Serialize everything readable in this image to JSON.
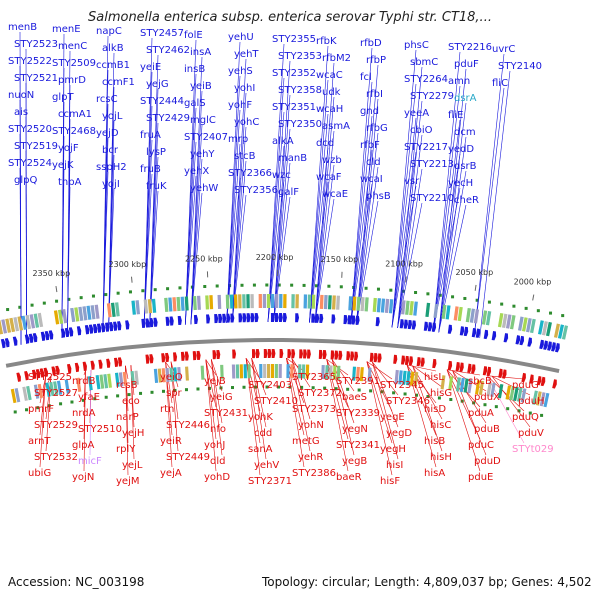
{
  "title": "Salmonella enterica subsp. enterica serovar Typhi str. CT18,...",
  "footer": {
    "accession": "Accession: NC_003198",
    "summary": "Topology: circular; Length: 4,809,037 bp; Genes: 4,502"
  },
  "colors": {
    "forward_gene": "#1a1adc",
    "reverse_gene": "#e01010",
    "rna_gene": "#ff88cc",
    "disabled_gene": "#cc88ff",
    "backbone": "#888888",
    "tick": "#666666",
    "dot": "#2e8b2e"
  },
  "scale_ticks": [
    {
      "label": "2000 kbp"
    },
    {
      "label": "2050 kbp"
    },
    {
      "label": "2100 kbp"
    },
    {
      "label": "2150 kbp"
    },
    {
      "label": "2200 kbp"
    },
    {
      "label": "2250 kbp"
    },
    {
      "label": "2300 kbp"
    },
    {
      "label": "2350 kbp"
    }
  ],
  "forward_labels": [
    "menB",
    "STY2523",
    "STY2522",
    "STY2521",
    "nuoN",
    "ais",
    "STY2520",
    "STY2519",
    "STY2524",
    "glpQ",
    "menE",
    "menC",
    "STY2509",
    "pmrD",
    "glpT",
    "ccmA1",
    "STY2468",
    "yojF",
    "yejK",
    "tnpA",
    "napC",
    "alkB",
    "ccmB1",
    "ccmF1",
    "rcsC",
    "yojL",
    "yejD",
    "bcr",
    "sspH2",
    "yojI",
    "STY2457",
    "STY2462",
    "yeiE",
    "yejG",
    "STY2444",
    "STY2429",
    "fruA",
    "lysP",
    "fruB",
    "fruK",
    "folE",
    "insA",
    "insB",
    "yeiB",
    "galS",
    "mglC",
    "STY2407",
    "yehY",
    "yehX",
    "yehW",
    "yehU",
    "yehT",
    "yehS",
    "yohI",
    "yohF",
    "yohC",
    "mrp",
    "stcB",
    "STY2366",
    "STY2356",
    "STY2355",
    "STY2353",
    "STY2352",
    "STY2358",
    "STY2351",
    "STY2350",
    "alkA",
    "manB",
    "wzc",
    "galF",
    "rfbK",
    "rfbM2",
    "wcaC",
    "udk",
    "wcaH",
    "asmA",
    "dcd",
    "wzb",
    "wcaF",
    "wcaE",
    "rfbD",
    "rfbP",
    "fcl",
    "rfbI",
    "gnd",
    "rfbG",
    "rfbF",
    "cld",
    "wcaI",
    "phsB",
    "phsC",
    "sbmC",
    "STY2264",
    "STY2279",
    "yeeA",
    "cbiO",
    "STY2217",
    "STY2213",
    "vsr",
    "STY2210",
    "STY2216",
    "pduF",
    "amn",
    "dsrA",
    "fliE",
    "dcm",
    "yedD",
    "dsrB",
    "yecH",
    "cheR",
    "uvrC",
    "STY2140",
    "fliC"
  ],
  "reverse_labels": [
    "STY2525",
    "STY2527",
    "pmrF",
    "STY2529",
    "arnT",
    "STY2532",
    "ubiG",
    "nrdB",
    "yfaE",
    "nrdA",
    "STY2510",
    "glpA",
    "micF",
    "yojN",
    "rcsB",
    "eco",
    "narP",
    "yejH",
    "rplY",
    "yejL",
    "yejM",
    "yeiO",
    "spr",
    "rtn",
    "STY2446",
    "yeiR",
    "STY2449",
    "yejA",
    "yejB",
    "yeiG",
    "STY2431",
    "nfo",
    "yohJ",
    "dld",
    "yohD",
    "STY2403",
    "STY2410",
    "yohK",
    "cdd",
    "sanA",
    "yehV",
    "STY2371",
    "STY2365",
    "STY2372",
    "STY2373",
    "yohN",
    "metG",
    "yehR",
    "STY2386",
    "STY2391",
    "baeS",
    "STY2339",
    "yegN",
    "STY2341",
    "yegB",
    "baeR",
    "STY2345",
    "STY2346",
    "yegE",
    "yegD",
    "yegH",
    "hisI",
    "hisF",
    "hisL",
    "hisG",
    "hisD",
    "hisC",
    "hisB",
    "hisH",
    "hisA",
    "sbcB",
    "pduX",
    "pduA",
    "pduB",
    "pduC",
    "pduD",
    "pduE",
    "pduG",
    "pduH",
    "pduQ",
    "pduV",
    "STYt029"
  ]
}
